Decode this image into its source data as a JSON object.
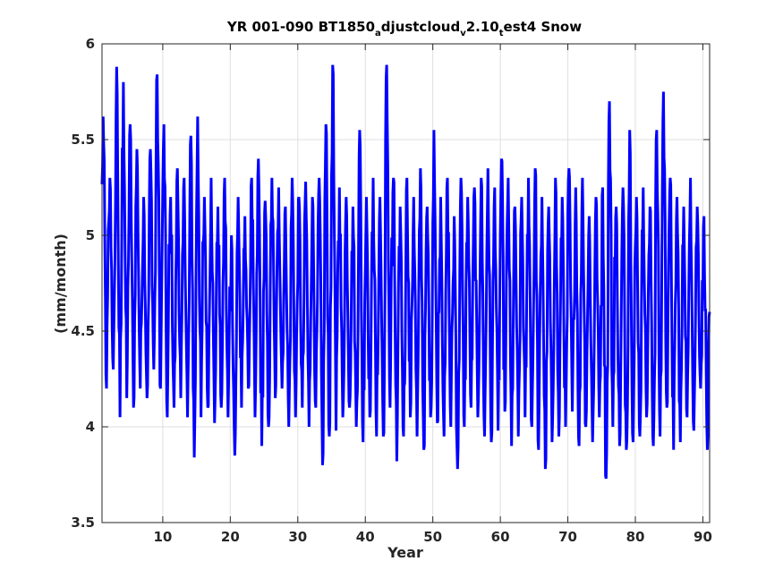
{
  "chart_data": {
    "type": "line",
    "title": {
      "part1": "YR 001-090 BT1850",
      "sub1": "a",
      "part2": "djustcloud",
      "sub2": "v",
      "part3": "2.10",
      "sub3": "t",
      "part4": "est4 Snow"
    },
    "xlabel": "Year",
    "ylabel": "(mm/month)",
    "xlim": [
      1,
      91
    ],
    "ylim": [
      3.5,
      6
    ],
    "xticks": [
      10,
      20,
      30,
      40,
      50,
      60,
      70,
      80,
      90
    ],
    "yticks": [
      3.5,
      4,
      4.5,
      5,
      5.5,
      6
    ],
    "ytick_labels": [
      "3.5",
      "4",
      "4.5",
      "5",
      "5.5",
      "6"
    ],
    "grid": true,
    "series": [
      {
        "color": "#0000ff",
        "x_start": 1,
        "x_step": 0.08333,
        "monthly_pattern": "seasonal cycle approx. 4.1 (low) to 5.5 (high) mm/month",
        "notable_values": [
          {
            "x": 4.3,
            "y": 5.88
          },
          {
            "x": 14.8,
            "y": 3.84
          },
          {
            "x": 34.3,
            "y": 3.8
          },
          {
            "x": 35.2,
            "y": 5.89
          },
          {
            "x": 43.2,
            "y": 5.89
          },
          {
            "x": 55.5,
            "y": 3.78
          },
          {
            "x": 67.6,
            "y": 3.78
          },
          {
            "x": 77.3,
            "y": 3.73
          },
          {
            "x": 84.1,
            "y": 5.75
          }
        ],
        "yearly_peaks": [
          5.62,
          5.3,
          5.88,
          5.8,
          5.58,
          5.45,
          5.2,
          5.45,
          5.84,
          5.58,
          5.2,
          5.35,
          5.3,
          5.52,
          5.62,
          5.2,
          5.3,
          5.15,
          5.3,
          5.0,
          5.2,
          5.1,
          5.3,
          5.4,
          5.18,
          5.3,
          5.25,
          5.15,
          5.3,
          5.2,
          5.28,
          5.2,
          5.3,
          5.58,
          5.89,
          5.25,
          5.2,
          5.15,
          5.55,
          5.2,
          5.3,
          5.2,
          5.89,
          5.3,
          5.15,
          5.3,
          5.2,
          5.35,
          5.15,
          5.55,
          5.2,
          5.3,
          5.1,
          5.3,
          5.2,
          5.25,
          5.3,
          5.35,
          5.25,
          5.4,
          5.3,
          5.15,
          5.2,
          5.3,
          5.35,
          5.2,
          5.15,
          5.3,
          5.2,
          5.35,
          5.25,
          5.3,
          5.1,
          5.2,
          5.25,
          5.7,
          5.15,
          5.25,
          5.55,
          5.2,
          5.25,
          5.15,
          5.55,
          5.75,
          5.3,
          5.2,
          5.15,
          5.3,
          5.15,
          5.1
        ],
        "yearly_troughs": [
          4.2,
          4.3,
          4.05,
          4.15,
          4.1,
          4.2,
          4.15,
          4.3,
          4.2,
          4.05,
          4.1,
          4.15,
          4.05,
          3.84,
          4.05,
          4.1,
          4.02,
          4.1,
          4.05,
          3.85,
          4.1,
          4.2,
          4.05,
          3.9,
          4.0,
          4.15,
          4.2,
          4.0,
          4.05,
          4.1,
          4.0,
          4.1,
          3.8,
          3.95,
          3.98,
          4.05,
          4.1,
          4.0,
          3.92,
          4.05,
          3.95,
          3.95,
          4.1,
          3.82,
          3.95,
          4.05,
          3.95,
          3.88,
          4.05,
          4.02,
          3.95,
          4.0,
          3.78,
          4.0,
          4.1,
          4.05,
          3.95,
          3.92,
          3.98,
          4.08,
          3.9,
          3.95,
          4.05,
          4.0,
          3.88,
          3.78,
          3.92,
          3.95,
          4.0,
          4.08,
          3.9,
          4.0,
          3.92,
          4.05,
          3.73,
          4.0,
          3.9,
          3.88,
          3.92,
          3.95,
          4.05,
          3.9,
          3.95,
          4.1,
          3.88,
          3.92,
          4.05,
          3.98,
          4.2,
          3.88
        ]
      }
    ]
  }
}
